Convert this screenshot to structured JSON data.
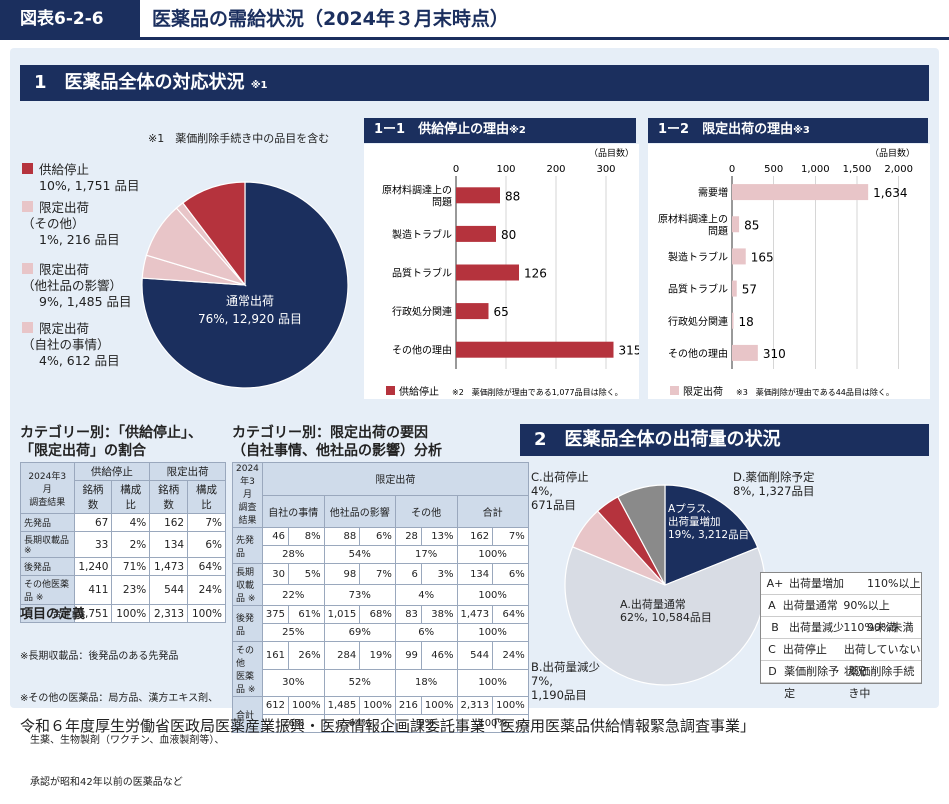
{
  "header": {
    "badge": "図表6-2-6",
    "title": "医薬品の需給状況（2024年３月末時点）"
  },
  "sec1": {
    "title": "1　医薬品全体の対応状況",
    "mark": "※1",
    "note": "※1　薬価削除手続き中の品目を含む"
  },
  "pie1": {
    "labels": [
      {
        "title": "供給停止",
        "value": "10%, 1,751 品目"
      },
      {
        "title": "限定出荷\n（その他）",
        "value": "1%, 216 品目"
      },
      {
        "title": "限定出荷\n（他社品の影響）",
        "value": "9%, 1,485 品目"
      },
      {
        "title": "限定出荷\n（自社の事情）",
        "value": "4%, 612 品目"
      }
    ],
    "main_label": "通常出荷",
    "main_value": "76%, 12,920 品目"
  },
  "bar1": {
    "title": "1ー1　供給停止の理由",
    "mark": "※2",
    "unit": "（品目数）",
    "legend": "供給停止",
    "note": "※2　薬価削除が理由である1,077品目は除く。"
  },
  "bar2": {
    "title": "1ー2　限定出荷の理由",
    "mark": "※3",
    "unit": "（品目数）",
    "legend": "限定出荷",
    "note": "※3　薬価削除が理由である44品目は除く。"
  },
  "tbl1": {
    "title": "カテゴリー別：「供給停止」、\n「限定出荷」の割合",
    "corner": "2024年3月\n調査結果",
    "g1": "供給停止",
    "g2": "限定出荷",
    "cols": [
      "銘柄数",
      "構成比",
      "銘柄数",
      "構成比"
    ],
    "rows": [
      [
        "先発品",
        "67",
        "4%",
        "162",
        "7%"
      ],
      [
        "長期収載品 ※",
        "33",
        "2%",
        "134",
        "6%"
      ],
      [
        "後発品",
        "1,240",
        "71%",
        "1,473",
        "64%"
      ],
      [
        "その他医薬品 ※",
        "411",
        "23%",
        "544",
        "24%"
      ],
      [
        "合計",
        "1,751",
        "100%",
        "2,313",
        "100%"
      ]
    ]
  },
  "defs": {
    "title": "項目の定義",
    "lines": [
      "※長期収載品：後発品のある先発品",
      "※その他の医薬品：局方品、漢方エキス剤、",
      "　生薬、生物製剤（ワクチン、血液製剤等）、",
      "　承認が昭和42年以前の医薬品など"
    ]
  },
  "tbl2": {
    "title": "カテゴリー別：限定出荷の要因\n（自社事情、他社品の影響）分析",
    "corner": "2024年3月\n調査結果",
    "group": "限定出荷",
    "cols": [
      "自社の事情",
      "他社品の影響",
      "その他",
      "合計"
    ],
    "rows": [
      {
        "label": "先発品",
        "a": [
          "46",
          "8%",
          "88",
          "6%",
          "28",
          "13%",
          "162",
          "7%"
        ],
        "b": [
          "28%",
          "54%",
          "17%",
          "100%"
        ]
      },
      {
        "label": "長期\n収載品 ※",
        "a": [
          "30",
          "5%",
          "98",
          "7%",
          "6",
          "3%",
          "134",
          "6%"
        ],
        "b": [
          "22%",
          "73%",
          "4%",
          "100%"
        ]
      },
      {
        "label": "後発品",
        "a": [
          "375",
          "61%",
          "1,015",
          "68%",
          "83",
          "38%",
          "1,473",
          "64%"
        ],
        "b": [
          "25%",
          "69%",
          "6%",
          "100%"
        ]
      },
      {
        "label": "その他\n医薬品 ※",
        "a": [
          "161",
          "26%",
          "284",
          "19%",
          "99",
          "46%",
          "544",
          "24%"
        ],
        "b": [
          "30%",
          "52%",
          "18%",
          "100%"
        ]
      },
      {
        "label": "合計",
        "a": [
          "612",
          "100%",
          "1,485",
          "100%",
          "216",
          "100%",
          "2,313",
          "100%"
        ],
        "b": [
          "26%",
          "64%",
          "9%",
          "100%"
        ]
      }
    ]
  },
  "sec2": {
    "title": "2　医薬品全体の出荷量の状況"
  },
  "pie2": {
    "labels": {
      "c": "C.出荷停止\n4%,\n671品目",
      "d": "D.薬価削除予定\n8%, 1,327品目",
      "aplus": "Aプラス、\n出荷量増加\n19%, 3,212品目",
      "a": "A.出荷量通常\n62%, 10,584品目",
      "b": "B.出荷量減少\n7%,\n1,190品目"
    }
  },
  "legend2": [
    [
      "A+",
      "出荷量増加",
      "110%以上"
    ],
    [
      "A",
      "出荷量通常",
      "90%以上110%未満"
    ],
    [
      "B",
      "出荷量減少",
      "90%未満"
    ],
    [
      "C",
      "出荷停止",
      "出荷していない状況"
    ],
    [
      "D",
      "薬価削除予定",
      "薬価削除手続き中"
    ]
  ],
  "footer": "令和６年度厚生労働省医政局医薬産業振興・医療情報企画課委託事業「医療用医薬品供給情報緊急調査事業」",
  "colors": {
    "navy": "#1b2f5e",
    "red": "#b5333d",
    "pink": "#e8c5c8",
    "grey": "#8a8a8a",
    "lightgrey": "#d8dce4",
    "bg": "#e6eef7"
  },
  "chart_data": [
    {
      "type": "pie",
      "title": "医薬品全体の対応状況",
      "slices": [
        {
          "label": "通常出荷",
          "value": 12920,
          "percent": 76
        },
        {
          "label": "供給停止",
          "value": 1751,
          "percent": 10
        },
        {
          "label": "限定出荷（その他）",
          "value": 216,
          "percent": 1
        },
        {
          "label": "限定出荷（他社品の影響）",
          "value": 1485,
          "percent": 9
        },
        {
          "label": "限定出荷（自社の事情）",
          "value": 612,
          "percent": 4
        }
      ]
    },
    {
      "type": "bar",
      "orientation": "horizontal",
      "title": "供給停止の理由",
      "categories": [
        "原材料調達上の問題",
        "製造トラブル",
        "品質トラブル",
        "行政処分関連",
        "その他の理由"
      ],
      "values": [
        88,
        80,
        126,
        65,
        315
      ],
      "xlim": [
        0,
        340
      ],
      "ticks": [
        0,
        100,
        200,
        300
      ],
      "xlabel": "（品目数）"
    },
    {
      "type": "bar",
      "orientation": "horizontal",
      "title": "限定出荷の理由",
      "categories": [
        "需要増",
        "原材料調達上の問題",
        "製造トラブル",
        "品質トラブル",
        "行政処分関連",
        "その他の理由"
      ],
      "values": [
        1634,
        85,
        165,
        57,
        18,
        310
      ],
      "xlim": [
        0,
        2100
      ],
      "ticks": [
        0,
        500,
        1000,
        1500,
        2000
      ],
      "tick_labels": [
        "0",
        "500",
        "1,000",
        "1,500",
        "2,000"
      ],
      "xlabel": "（品目数）"
    },
    {
      "type": "pie",
      "title": "医薬品全体の出荷量の状況",
      "slices": [
        {
          "label": "Aプラス、出荷量増加",
          "value": 3212,
          "percent": 19
        },
        {
          "label": "A.出荷量通常",
          "value": 10584,
          "percent": 62
        },
        {
          "label": "B.出荷量減少",
          "value": 1190,
          "percent": 7
        },
        {
          "label": "C.出荷停止",
          "value": 671,
          "percent": 4
        },
        {
          "label": "D.薬価削除予定",
          "value": 1327,
          "percent": 8
        }
      ]
    }
  ]
}
